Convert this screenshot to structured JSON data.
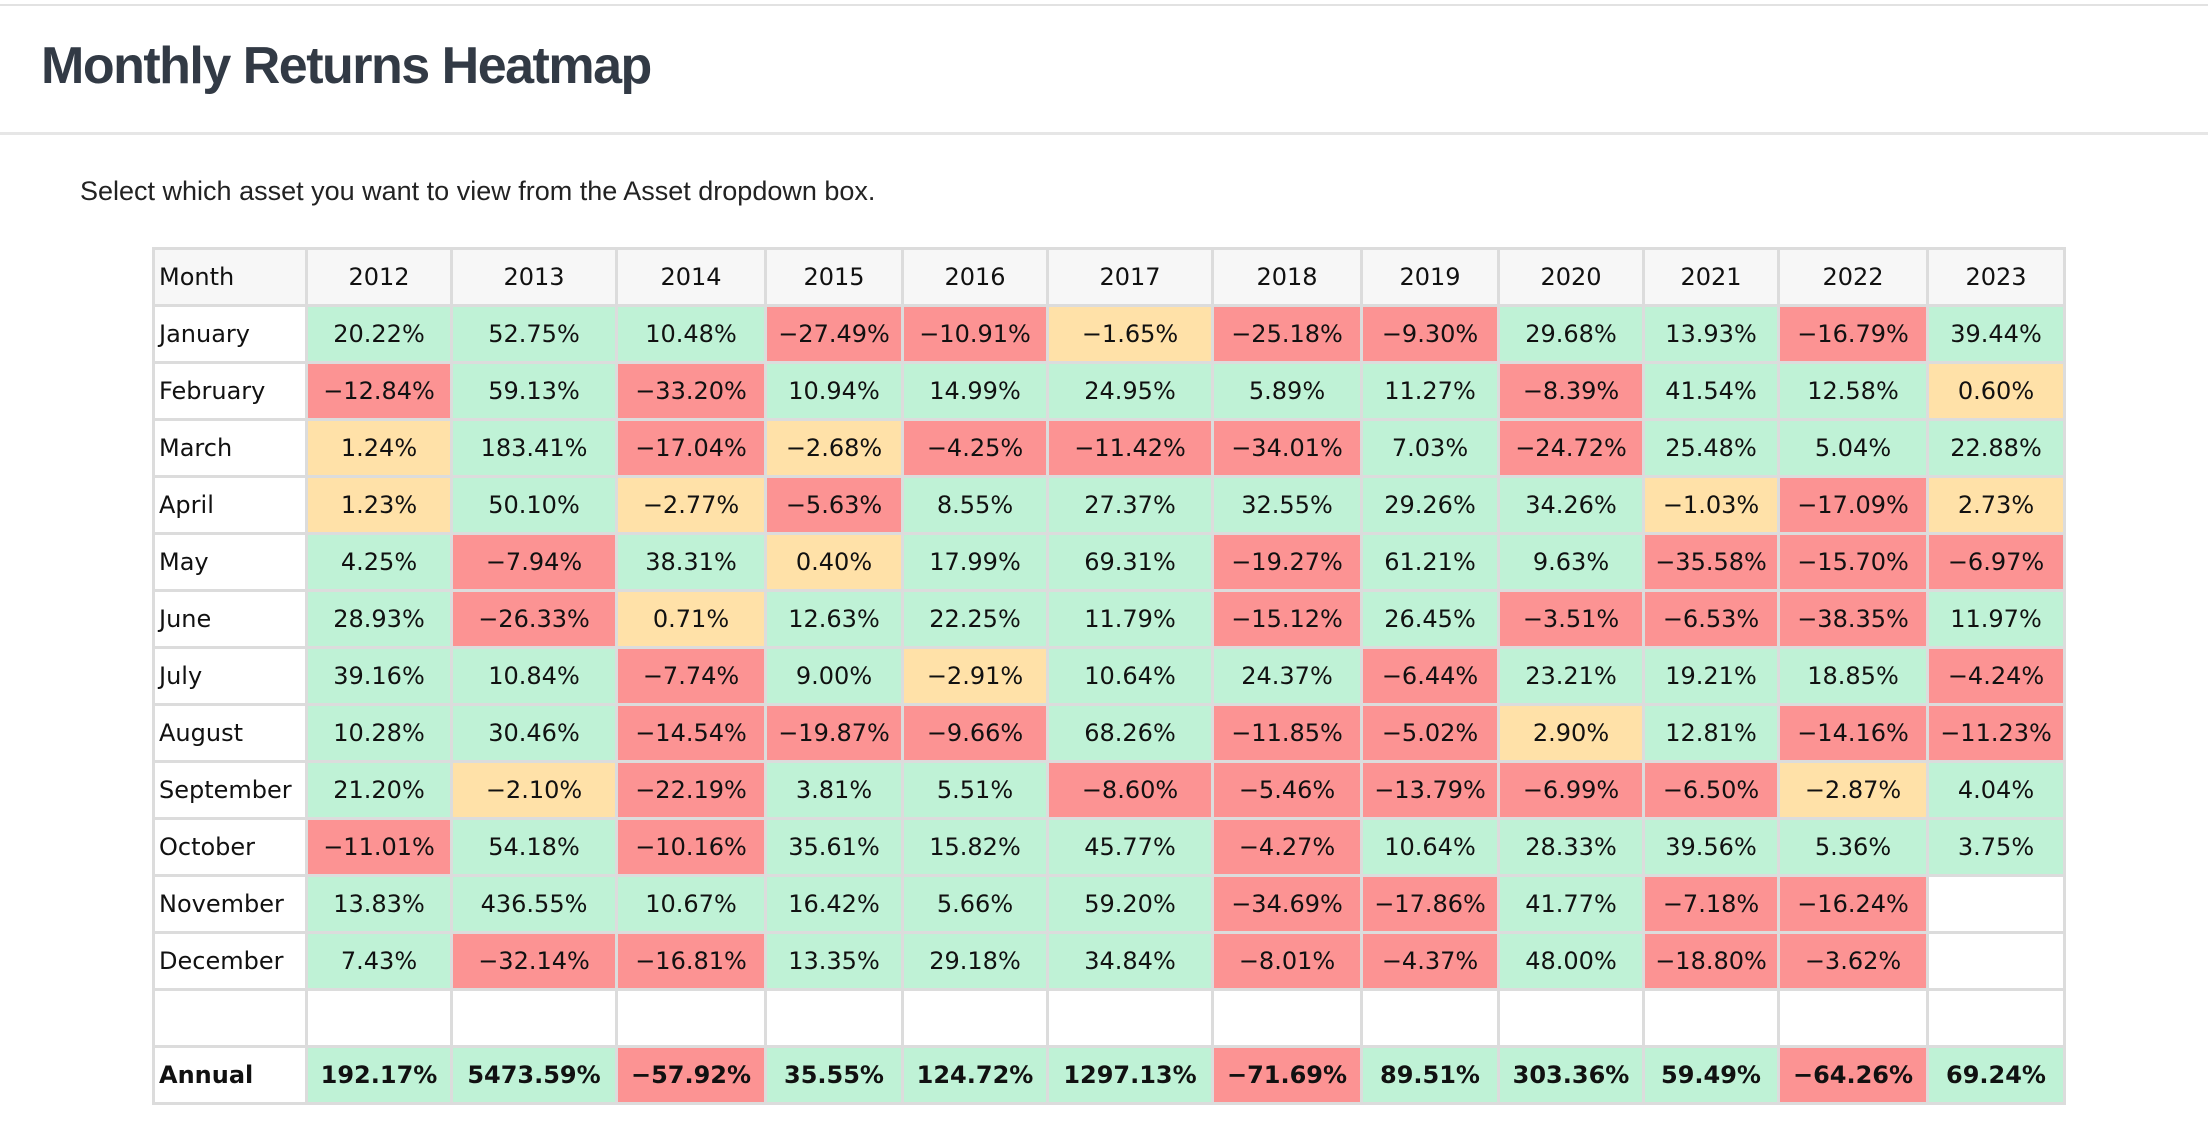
{
  "header": {
    "title": "Monthly Returns Heatmap"
  },
  "description": "Select which asset you want to view from the Asset dropdown box.",
  "table": {
    "columns": [
      "Month",
      "2012",
      "2013",
      "2014",
      "2015",
      "2016",
      "2017",
      "2018",
      "2019",
      "2020",
      "2021",
      "2022",
      "2023"
    ],
    "rows": [
      [
        "January",
        "20.22%",
        "52.75%",
        "10.48%",
        "−27.49%",
        "−10.91%",
        "−1.65%",
        "−25.18%",
        "−9.30%",
        "29.68%",
        "13.93%",
        "−16.79%",
        "39.44%"
      ],
      [
        "February",
        "−12.84%",
        "59.13%",
        "−33.20%",
        "10.94%",
        "14.99%",
        "24.95%",
        "5.89%",
        "11.27%",
        "−8.39%",
        "41.54%",
        "12.58%",
        "0.60%"
      ],
      [
        "March",
        "1.24%",
        "183.41%",
        "−17.04%",
        "−2.68%",
        "−4.25%",
        "−11.42%",
        "−34.01%",
        "7.03%",
        "−24.72%",
        "25.48%",
        "5.04%",
        "22.88%"
      ],
      [
        "April",
        "1.23%",
        "50.10%",
        "−2.77%",
        "−5.63%",
        "8.55%",
        "27.37%",
        "32.55%",
        "29.26%",
        "34.26%",
        "−1.03%",
        "−17.09%",
        "2.73%"
      ],
      [
        "May",
        "4.25%",
        "−7.94%",
        "38.31%",
        "0.40%",
        "17.99%",
        "69.31%",
        "−19.27%",
        "61.21%",
        "9.63%",
        "−35.58%",
        "−15.70%",
        "−6.97%"
      ],
      [
        "June",
        "28.93%",
        "−26.33%",
        "0.71%",
        "12.63%",
        "22.25%",
        "11.79%",
        "−15.12%",
        "26.45%",
        "−3.51%",
        "−6.53%",
        "−38.35%",
        "11.97%"
      ],
      [
        "July",
        "39.16%",
        "10.84%",
        "−7.74%",
        "9.00%",
        "−2.91%",
        "10.64%",
        "24.37%",
        "−6.44%",
        "23.21%",
        "19.21%",
        "18.85%",
        "−4.24%"
      ],
      [
        "August",
        "10.28%",
        "30.46%",
        "−14.54%",
        "−19.87%",
        "−9.66%",
        "68.26%",
        "−11.85%",
        "−5.02%",
        "2.90%",
        "12.81%",
        "−14.16%",
        "−11.23%"
      ],
      [
        "September",
        "21.20%",
        "−2.10%",
        "−22.19%",
        "3.81%",
        "5.51%",
        "−8.60%",
        "−5.46%",
        "−13.79%",
        "−6.99%",
        "−6.50%",
        "−2.87%",
        "4.04%"
      ],
      [
        "October",
        "−11.01%",
        "54.18%",
        "−10.16%",
        "35.61%",
        "15.82%",
        "45.77%",
        "−4.27%",
        "10.64%",
        "28.33%",
        "39.56%",
        "5.36%",
        "3.75%"
      ],
      [
        "November",
        "13.83%",
        "436.55%",
        "10.67%",
        "16.42%",
        "5.66%",
        "59.20%",
        "−34.69%",
        "−17.86%",
        "41.77%",
        "−7.18%",
        "−16.24%",
        null
      ],
      [
        "December",
        "7.43%",
        "−32.14%",
        "−16.81%",
        "13.35%",
        "29.18%",
        "34.84%",
        "−8.01%",
        "−4.37%",
        "48.00%",
        "−18.80%",
        "−3.62%",
        null
      ]
    ],
    "annual": [
      "Annual",
      "192.17%",
      "5473.59%",
      "−57.92%",
      "35.55%",
      "124.72%",
      "1297.13%",
      "−71.69%",
      "89.51%",
      "303.36%",
      "59.49%",
      "−64.26%",
      "69.24%"
    ]
  }
}
